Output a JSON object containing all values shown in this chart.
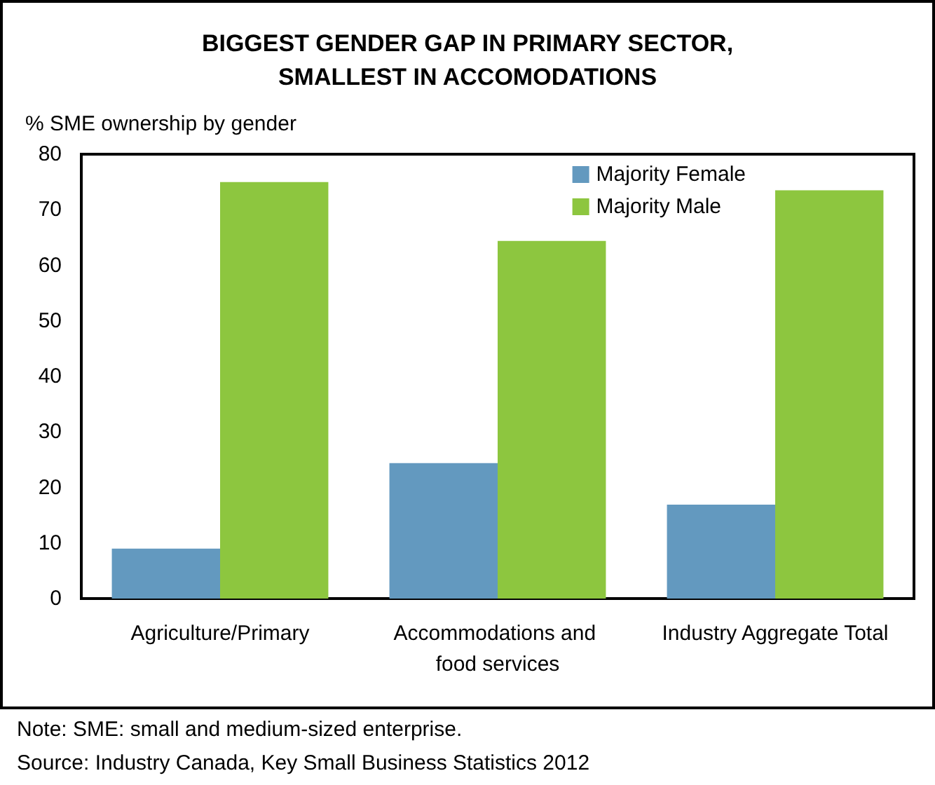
{
  "chart_data": {
    "type": "bar",
    "title": "BIGGEST GENDER GAP IN PRIMARY SECTOR,\nSMALLEST IN ACCOMODATIONS",
    "ylabel": "% SME ownership by gender",
    "categories": [
      "Agriculture/Primary",
      "Accommodations and food services",
      "Industry Aggregate Total"
    ],
    "series": [
      {
        "name": "Majority Female",
        "color": "#6399bf",
        "values": [
          9,
          24.4,
          16.9
        ]
      },
      {
        "name": "Majority Male",
        "color": "#8dc63f",
        "values": [
          75,
          64.4,
          73.5
        ]
      }
    ],
    "ylim": [
      0,
      80
    ],
    "yticks": [
      0,
      10,
      20,
      30,
      40,
      50,
      60,
      70,
      80
    ],
    "grid": false,
    "legend": "top right",
    "annotations": [
      "Note: SME: small and medium-sized enterprise.",
      "Source: Industry Canada, Key Small Business Statistics 2012"
    ]
  }
}
